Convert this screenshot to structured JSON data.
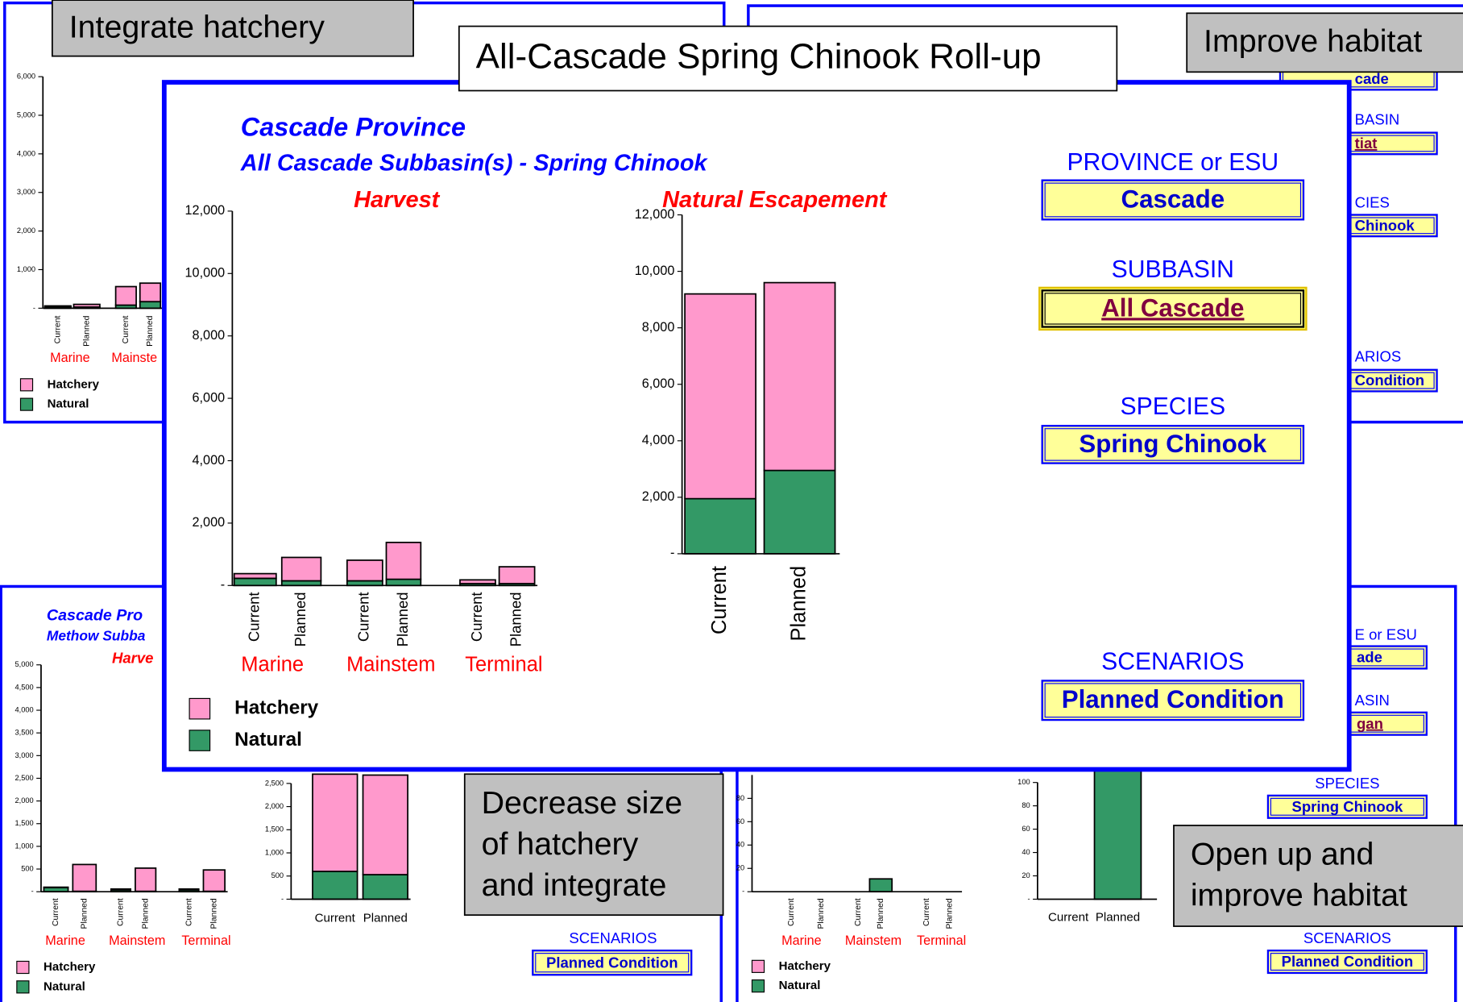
{
  "callouts": [
    {
      "lines": [
        "Integrate hatchery"
      ]
    },
    {
      "lines": [
        "All-Cascade Spring Chinook Roll-up"
      ]
    },
    {
      "lines": [
        "Improve habitat"
      ]
    },
    {
      "lines": [
        "Decrease size",
        "of hatchery",
        "and integrate"
      ]
    },
    {
      "lines": [
        "Open up and",
        "improve habitat"
      ]
    }
  ],
  "main": {
    "title": "Cascade Province",
    "subtitle": "All Cascade Subbasin(s) -  Spring Chinook",
    "harvest": {
      "title": "Harvest",
      "ylim": [
        0,
        12000
      ],
      "yticks": [
        {
          "value": 0,
          "label": "-"
        },
        {
          "value": 2000,
          "label": "2,000"
        },
        {
          "value": 4000,
          "label": "4,000"
        },
        {
          "value": 6000,
          "label": "6,000"
        },
        {
          "value": 8000,
          "label": "8,000"
        },
        {
          "value": 10000,
          "label": "10,000"
        },
        {
          "value": 12000,
          "label": "12,000"
        }
      ],
      "groups": [
        "Marine",
        "Mainstem",
        "Terminal"
      ],
      "bars": [
        "Current",
        "Planned",
        "Current",
        "Planned",
        "Current",
        "Planned"
      ],
      "series": [
        {
          "name": "Natural",
          "color": "#339966",
          "values": [
            230,
            150,
            150,
            200,
            60,
            60
          ]
        },
        {
          "name": "Hatchery",
          "color": "#ff99cc",
          "values": [
            150,
            750,
            660,
            1180,
            120,
            540
          ]
        }
      ]
    },
    "escapement": {
      "title": "Natural Escapement",
      "ylim": [
        0,
        12000
      ],
      "yticks": [
        {
          "value": 0,
          "label": "-"
        },
        {
          "value": 2000,
          "label": "2,000"
        },
        {
          "value": 4000,
          "label": "4,000"
        },
        {
          "value": 6000,
          "label": "6,000"
        },
        {
          "value": 8000,
          "label": "8,000"
        },
        {
          "value": 10000,
          "label": "10,000"
        },
        {
          "value": 12000,
          "label": "12,000"
        }
      ],
      "bars": [
        "Current",
        "Planned"
      ],
      "series": [
        {
          "name": "Natural",
          "color": "#339966",
          "values": [
            1950,
            2950
          ]
        },
        {
          "name": "Hatchery",
          "color": "#ff99cc",
          "values": [
            7250,
            6650
          ]
        }
      ]
    },
    "selectors": [
      {
        "label": "PROVINCE or ESU",
        "value": "Cascade"
      },
      {
        "label": "SUBBASIN",
        "value": "All Cascade"
      },
      {
        "label": "SPECIES",
        "value": "Spring Chinook"
      },
      {
        "label": "SCENARIOS",
        "value": "Planned Condition"
      }
    ]
  },
  "panels": [
    {
      "harvest": {
        "ylim": [
          0,
          6000
        ],
        "yticks": [
          {
            "value": 0,
            "label": "-"
          },
          {
            "value": 1000,
            "label": "1,000"
          },
          {
            "value": 2000,
            "label": "2,000"
          },
          {
            "value": 3000,
            "label": "3,000"
          },
          {
            "value": 4000,
            "label": "4,000"
          },
          {
            "value": 5000,
            "label": "5,000"
          },
          {
            "value": 6000,
            "label": "6,000"
          }
        ],
        "groups": [
          "Marine",
          "Mainste"
        ],
        "bars": [
          "Current",
          "Planned",
          "Current",
          "Planned"
        ],
        "series": [
          {
            "name": "Natural",
            "color": "#339966",
            "values": [
              40,
              30,
              80,
              170
            ]
          },
          {
            "name": "Hatchery",
            "color": "#ff99cc",
            "values": [
              20,
              70,
              480,
              480
            ]
          }
        ]
      }
    },
    {
      "selectors": [
        {
          "label": "",
          "value": "cade"
        },
        {
          "label": "BASIN",
          "value": "tiat"
        },
        {
          "label": "CIES",
          "value": "Chinook"
        },
        {
          "label": "ARIOS",
          "value": "Condition"
        }
      ]
    },
    {
      "title": "Cascade Pro",
      "subtitle": "Methow Subba",
      "harvest": {
        "title": "Harve",
        "ylim": [
          0,
          5000
        ],
        "yticks": [
          {
            "value": 0,
            "label": "-"
          },
          500,
          {
            "value": 1000,
            "label": "1,000"
          },
          {
            "value": 1500,
            "label": "1,500"
          },
          {
            "value": 2000,
            "label": "2,000"
          },
          {
            "value": 2500,
            "label": "2,500"
          },
          {
            "value": 3000,
            "label": "3,000"
          },
          {
            "value": 3500,
            "label": "3,500"
          },
          {
            "value": 4000,
            "label": "4,000"
          },
          {
            "value": 4500,
            "label": "4,500"
          },
          {
            "value": 5000,
            "label": "5,000"
          }
        ],
        "groups": [
          "Marine",
          "Mainstem",
          "Terminal"
        ],
        "bars": [
          "Current",
          "Planned",
          "Current",
          "Planned",
          "Current",
          "Planned"
        ],
        "series": [
          {
            "name": "Natural",
            "color": "#339966",
            "values": [
              90,
              10,
              40,
              10,
              40,
              10
            ]
          },
          {
            "name": "Hatchery",
            "color": "#ff99cc",
            "values": [
              10,
              590,
              20,
              510,
              20,
              470
            ]
          }
        ]
      },
      "escapement": {
        "ylim": [
          0,
          2500
        ],
        "yticks": [
          {
            "value": 0,
            "label": "-"
          },
          500,
          {
            "value": 1000,
            "label": "1,000"
          },
          {
            "value": 1500,
            "label": "1,500"
          },
          {
            "value": 2000,
            "label": "2,000"
          },
          {
            "value": 2500,
            "label": "2,500"
          }
        ],
        "bars": [
          "Current",
          "Planned"
        ],
        "series": [
          {
            "name": "Natural",
            "color": "#339966",
            "values": [
              600,
              530
            ]
          },
          {
            "name": "Hatchery",
            "color": "#ff99cc",
            "values": [
              2100,
              2150
            ]
          }
        ]
      },
      "selectors": [
        {
          "label": "SCENARIOS",
          "value": "Planned Condition"
        }
      ]
    },
    {
      "harvest": {
        "ylim": [
          0,
          100
        ],
        "yticks": [
          {
            "value": 0,
            "label": "-"
          },
          20,
          40,
          60,
          80
        ],
        "groups": [
          "Marine",
          "Mainstem",
          "Terminal"
        ],
        "bars": [
          "Current",
          "Planned",
          "Current",
          "Planned",
          "Current",
          "Planned"
        ],
        "series": [
          {
            "name": "Natural",
            "color": "#339966",
            "values": [
              0,
              0,
              0,
              11,
              0,
              0
            ]
          },
          {
            "name": "Hatchery",
            "color": "#ff99cc",
            "values": [
              0,
              0,
              0,
              0,
              0,
              0
            ]
          }
        ]
      },
      "escapement": {
        "ylim": [
          0,
          100
        ],
        "yticks": [
          {
            "value": 0,
            "label": "-"
          },
          20,
          40,
          60,
          80,
          100
        ],
        "bars": [
          "Current",
          "Planned"
        ],
        "series": [
          {
            "name": "Natural",
            "color": "#339966",
            "values": [
              0,
              115
            ]
          },
          {
            "name": "Hatchery",
            "color": "#ff99cc",
            "values": [
              0,
              0
            ]
          }
        ]
      },
      "selectors": [
        {
          "label": "E or ESU",
          "value": "ade"
        },
        {
          "label": "ASIN",
          "value": "gan"
        },
        {
          "label": "SPECIES",
          "value": "Spring Chinook"
        },
        {
          "label": "SCENARIOS",
          "value": "Planned Condition"
        }
      ]
    }
  ]
}
